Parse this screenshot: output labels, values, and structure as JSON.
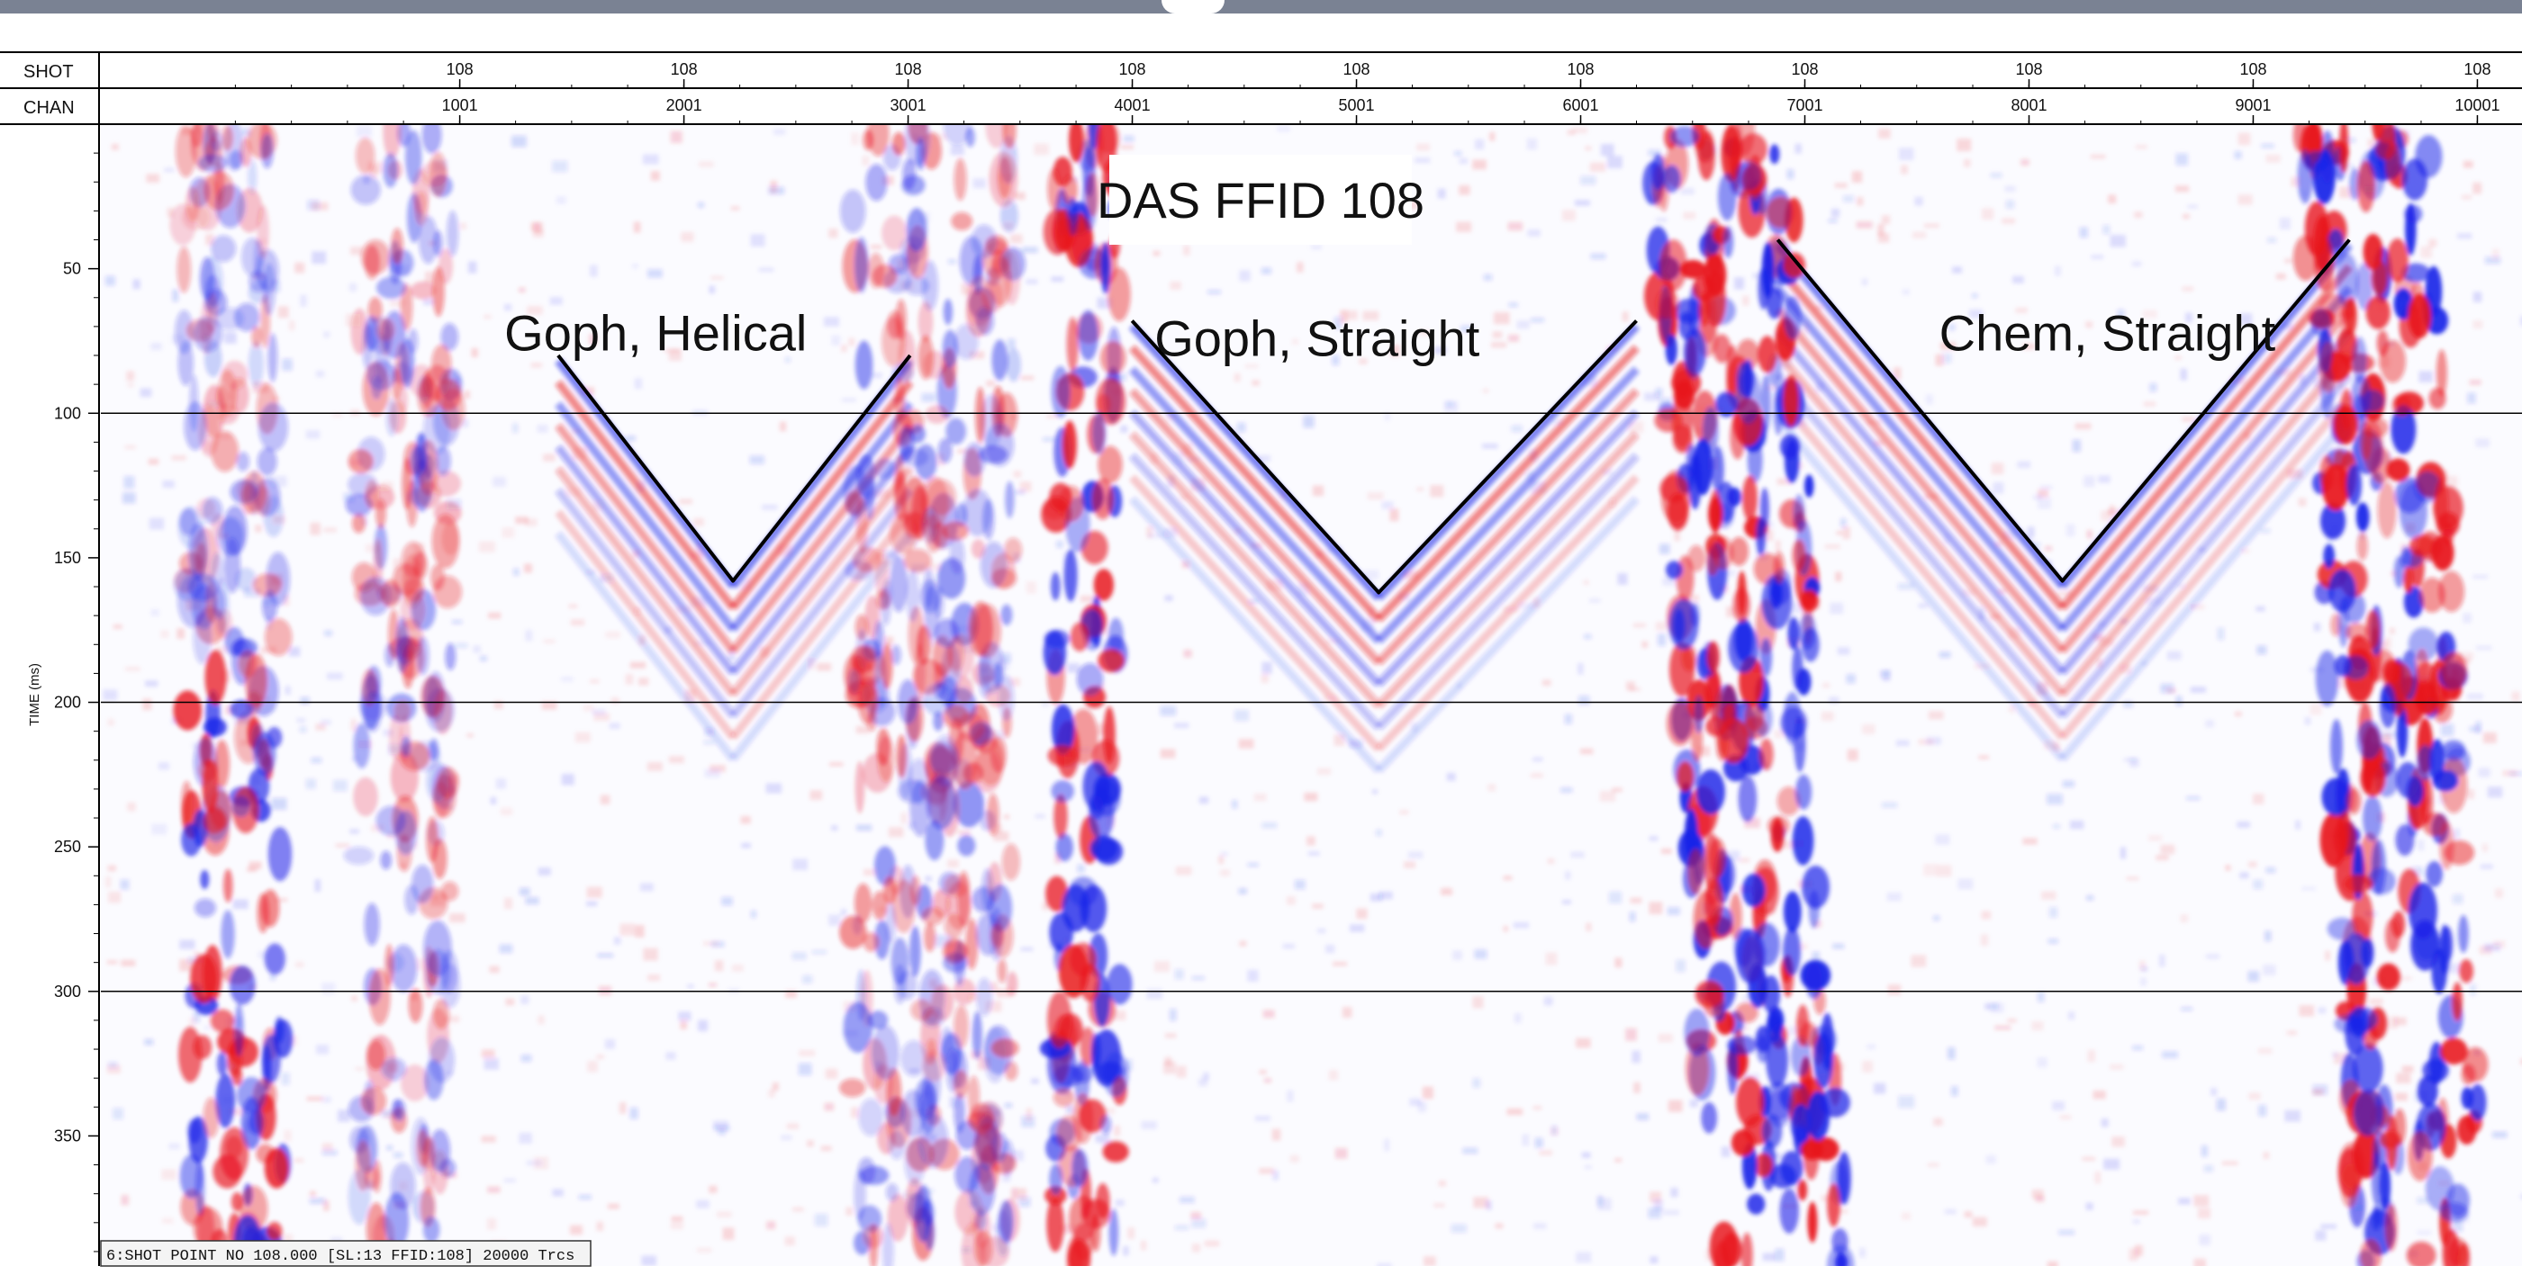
{
  "header": {
    "row1_label": "SHOT",
    "row2_label": "CHAN"
  },
  "status_bar": {
    "text": "6:SHOT POINT NO 108.000 [SL:13 FFID:108] 20000 Trcs"
  },
  "colors": {
    "positive": "#e8141c",
    "negative": "#1a22e8",
    "pick": "#000000",
    "band": "#7a8293"
  },
  "chart_data": {
    "type": "heatmap",
    "title": "DAS FFID 108",
    "ylabel": "TIME (ms)",
    "ylim": [
      0,
      395
    ],
    "y_ticks": [
      50,
      100,
      150,
      200,
      250,
      300,
      350
    ],
    "y_gridlines": [
      100,
      200,
      300
    ],
    "xlim": [
      -600,
      10200
    ],
    "x_ticks": [
      {
        "shot": "108",
        "chan": "1001",
        "chan_value": 1001
      },
      {
        "shot": "108",
        "chan": "2001",
        "chan_value": 2001
      },
      {
        "shot": "108",
        "chan": "3001",
        "chan_value": 3001
      },
      {
        "shot": "108",
        "chan": "4001",
        "chan_value": 4001
      },
      {
        "shot": "108",
        "chan": "5001",
        "chan_value": 5001
      },
      {
        "shot": "108",
        "chan": "6001",
        "chan_value": 6001
      },
      {
        "shot": "108",
        "chan": "7001",
        "chan_value": 7001
      },
      {
        "shot": "108",
        "chan": "8001",
        "chan_value": 8001
      },
      {
        "shot": "108",
        "chan": "9001",
        "chan_value": 9001
      },
      {
        "shot": "108",
        "chan": "10001",
        "chan_value": 10001
      }
    ],
    "annotations": [
      {
        "text": "Goph, Helical",
        "chan": 1200,
        "time": 72
      },
      {
        "text": "Goph, Straight",
        "chan": 4100,
        "time": 74
      },
      {
        "text": "Chem, Straight",
        "chan": 7600,
        "time": 72
      }
    ],
    "first_break_picks": [
      {
        "name": "Goph, Helical",
        "points": [
          [
            1440,
            80
          ],
          [
            2220,
            158
          ],
          [
            3010,
            80
          ]
        ]
      },
      {
        "name": "Goph, Straight",
        "points": [
          [
            4000,
            68
          ],
          [
            5100,
            162
          ],
          [
            6250,
            68
          ]
        ]
      },
      {
        "name": "Chem, Straight",
        "points": [
          [
            6880,
            40
          ],
          [
            8150,
            158
          ],
          [
            9430,
            40
          ]
        ]
      }
    ],
    "noise_bands": [
      {
        "chan_start": -250,
        "chan_end": 250,
        "intensity": 0.85
      },
      {
        "chan_start": 550,
        "chan_end": 1050,
        "intensity": 0.45
      },
      {
        "chan_start": 2750,
        "chan_end": 3600,
        "intensity": 0.5
      },
      {
        "chan_start": 3650,
        "chan_end": 4000,
        "intensity": 0.9
      },
      {
        "chan_start": 6300,
        "chan_end": 7050,
        "intensity": 1.0
      },
      {
        "chan_start": 9200,
        "chan_end": 9900,
        "intensity": 1.0
      }
    ]
  }
}
